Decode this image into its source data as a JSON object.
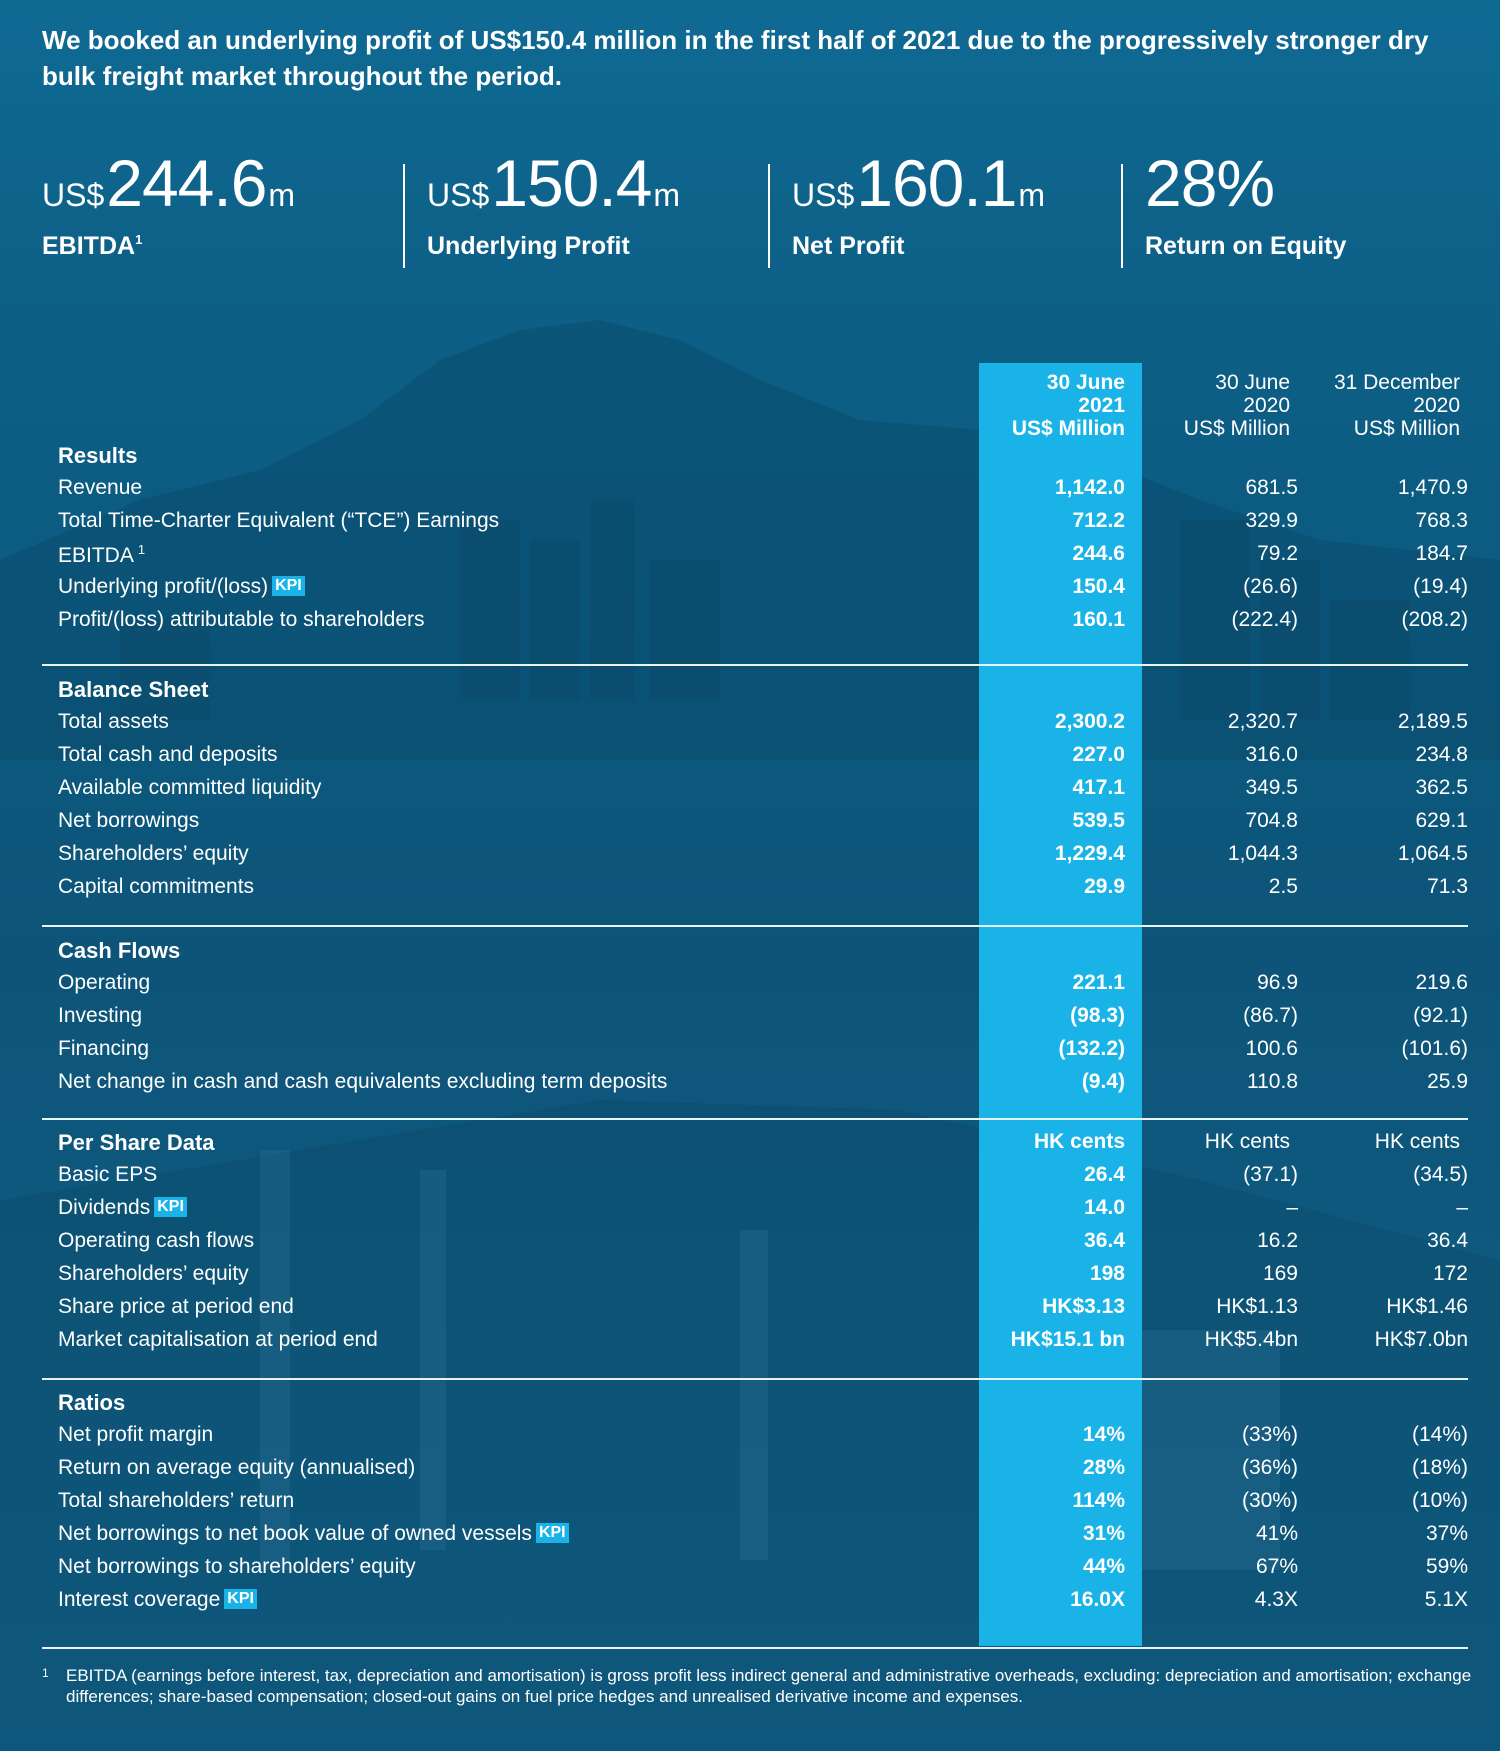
{
  "headline": "We booked an underlying profit of US$150.4 million in the first half of 2021 due to the progressively stronger dry bulk freight market throughout the period.",
  "kpis": [
    {
      "prefix": "US$",
      "value": "244.6",
      "suffix": "m",
      "label": "EBITDA",
      "sup": "1"
    },
    {
      "prefix": "US$",
      "value": "150.4",
      "suffix": "m",
      "label": "Underlying Profit",
      "sup": ""
    },
    {
      "prefix": "US$",
      "value": "160.1",
      "suffix": "m",
      "label": "Net Profit",
      "sup": ""
    },
    {
      "prefix": "",
      "value": "28%",
      "suffix": "",
      "label": "Return on Equity",
      "sup": ""
    }
  ],
  "columns": {
    "c1": [
      "30 June",
      "2021",
      "US$ Million"
    ],
    "c2": [
      "30 June",
      "2020",
      "US$ Million"
    ],
    "c3": [
      "31 December",
      "2020",
      "US$ Million"
    ]
  },
  "kpi_badge": "KPI",
  "sections": [
    {
      "title": "Results",
      "rows": [
        {
          "label": "Revenue",
          "v": [
            "1,142.0",
            "681.5",
            "1,470.9"
          ]
        },
        {
          "label": "Total Time-Charter Equivalent (“TCE”) Earnings",
          "v": [
            "712.2",
            "329.9",
            "768.3"
          ]
        },
        {
          "label": "EBITDA",
          "sup": "1",
          "v": [
            "244.6",
            "79.2",
            "184.7"
          ]
        },
        {
          "label": "Underlying profit/(loss)",
          "kpi": true,
          "v": [
            "150.4",
            "(26.6)",
            "(19.4)"
          ]
        },
        {
          "label": "Profit/(loss) attributable to shareholders",
          "v": [
            "160.1",
            "(222.4)",
            "(208.2)"
          ]
        }
      ]
    },
    {
      "title": "Balance Sheet",
      "rows": [
        {
          "label": "Total assets",
          "v": [
            "2,300.2",
            "2,320.7",
            "2,189.5"
          ]
        },
        {
          "label": "Total cash and deposits",
          "v": [
            "227.0",
            "316.0",
            "234.8"
          ]
        },
        {
          "label": "Available committed liquidity",
          "v": [
            "417.1",
            "349.5",
            "362.5"
          ]
        },
        {
          "label": "Net borrowings",
          "v": [
            "539.5",
            "704.8",
            "629.1"
          ]
        },
        {
          "label": "Shareholders’ equity",
          "v": [
            "1,229.4",
            "1,044.3",
            "1,064.5"
          ]
        },
        {
          "label": "Capital commitments",
          "v": [
            "29.9",
            "2.5",
            "71.3"
          ]
        }
      ]
    },
    {
      "title": "Cash Flows",
      "rows": [
        {
          "label": "Operating",
          "v": [
            "221.1",
            "96.9",
            "219.6"
          ]
        },
        {
          "label": "Investing",
          "v": [
            "(98.3)",
            "(86.7)",
            "(92.1)"
          ]
        },
        {
          "label": "Financing",
          "v": [
            "(132.2)",
            "100.6",
            "(101.6)"
          ]
        },
        {
          "label": "Net change in cash and cash equivalents excluding term deposits",
          "v": [
            "(9.4)",
            "110.8",
            "25.9"
          ]
        }
      ]
    },
    {
      "title": "Per Share Data",
      "title_values": [
        "HK cents",
        "HK cents",
        "HK cents"
      ],
      "rows": [
        {
          "label": "Basic EPS",
          "v": [
            "26.4",
            "(37.1)",
            "(34.5)"
          ]
        },
        {
          "label": "Dividends",
          "kpi": true,
          "v": [
            "14.0",
            "–",
            "–"
          ]
        },
        {
          "label": "Operating cash flows",
          "v": [
            "36.4",
            "16.2",
            "36.4"
          ]
        },
        {
          "label": "Shareholders’ equity",
          "v": [
            "198",
            "169",
            "172"
          ]
        },
        {
          "label": "Share price at period end",
          "v": [
            "HK$3.13",
            "HK$1.13",
            "HK$1.46"
          ]
        },
        {
          "label": "Market capitalisation at period end",
          "v": [
            "HK$15.1 bn",
            "HK$5.4bn",
            "HK$7.0bn"
          ]
        }
      ]
    },
    {
      "title": "Ratios",
      "rows": [
        {
          "label": "Net profit margin",
          "v": [
            "14%",
            "(33%)",
            "(14%)"
          ]
        },
        {
          "label": "Return on average equity (annualised)",
          "v": [
            "28%",
            "(36%)",
            "(18%)"
          ]
        },
        {
          "label": "Total shareholders’ return",
          "v": [
            "114%",
            "(30%)",
            "(10%)"
          ]
        },
        {
          "label": "Net borrowings to net book value of owned vessels",
          "kpi": true,
          "v": [
            "31%",
            "41%",
            "37%"
          ]
        },
        {
          "label": "Net borrowings to shareholders’ equity",
          "v": [
            "44%",
            "67%",
            "59%"
          ]
        },
        {
          "label": "Interest coverage",
          "kpi": true,
          "v": [
            "16.0X",
            "4.3X",
            "5.1X"
          ]
        }
      ]
    }
  ],
  "footnote": {
    "mark": "1",
    "text": "EBITDA (earnings before interest, tax, depreciation and amortisation) is gross profit less indirect general and administrative overheads, excluding: depreciation and amortisation; exchange differences; share-based compensation; closed-out gains on fuel price hedges and unrealised derivative income and expenses."
  }
}
